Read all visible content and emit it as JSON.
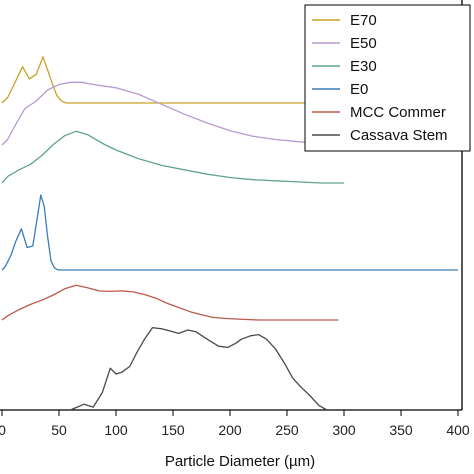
{
  "chart_data": {
    "type": "line",
    "xlabel": "Particle Diameter (µm)",
    "ylabel": "",
    "xlim": [
      0,
      400
    ],
    "xticks": [
      0,
      50,
      100,
      150,
      200,
      250,
      300,
      350,
      400
    ],
    "grid": false,
    "legend_position": "top-right",
    "series": [
      {
        "name": "E70",
        "color": "#c9a227",
        "x": [
          0,
          5,
          12,
          18,
          24,
          30,
          36,
          40,
          44,
          48,
          52,
          56,
          70,
          100,
          200,
          300
        ],
        "y": [
          0.0,
          0.05,
          0.2,
          0.33,
          0.22,
          0.26,
          0.42,
          0.3,
          0.18,
          0.07,
          0.02,
          0.0,
          0.0,
          0.0,
          0.0,
          0.0
        ]
      },
      {
        "name": "E50",
        "color": "#b99ad0",
        "x": [
          0,
          5,
          10,
          20,
          30,
          40,
          50,
          60,
          70,
          80,
          100,
          120,
          140,
          160,
          180,
          200,
          220,
          240,
          260,
          280,
          300
        ],
        "y": [
          0.0,
          0.05,
          0.15,
          0.33,
          0.4,
          0.5,
          0.55,
          0.57,
          0.57,
          0.55,
          0.52,
          0.46,
          0.37,
          0.28,
          0.2,
          0.13,
          0.08,
          0.05,
          0.03,
          0.01,
          0.0
        ]
      },
      {
        "name": "E30",
        "color": "#5fa58a",
        "x": [
          0,
          5,
          15,
          25,
          35,
          45,
          55,
          65,
          75,
          90,
          100,
          120,
          140,
          160,
          180,
          200,
          220,
          240,
          260,
          280,
          300
        ],
        "y": [
          0.0,
          0.06,
          0.12,
          0.17,
          0.25,
          0.35,
          0.43,
          0.47,
          0.44,
          0.35,
          0.3,
          0.22,
          0.16,
          0.12,
          0.08,
          0.05,
          0.03,
          0.02,
          0.01,
          0.0,
          0.0
        ]
      },
      {
        "name": "E0",
        "color": "#3a7dbb",
        "x": [
          0,
          3,
          8,
          12,
          17,
          22,
          27,
          31,
          34,
          37,
          40,
          43,
          46,
          49,
          53,
          60,
          100,
          200,
          300,
          400
        ],
        "y": [
          0.0,
          0.05,
          0.2,
          0.38,
          0.55,
          0.3,
          0.32,
          0.7,
          1.0,
          0.85,
          0.45,
          0.12,
          0.03,
          0.0,
          0.0,
          0.0,
          0.0,
          0.0,
          0.0,
          0.0
        ]
      },
      {
        "name": "MCC Commer",
        "color": "#b95a4a",
        "x": [
          0,
          5,
          15,
          25,
          35,
          45,
          55,
          65,
          75,
          85,
          95,
          105,
          115,
          125,
          135,
          145,
          155,
          165,
          175,
          185,
          195,
          205,
          215,
          225,
          235,
          245,
          255,
          265,
          275,
          285,
          295
        ],
        "y": [
          0.0,
          0.08,
          0.2,
          0.3,
          0.38,
          0.48,
          0.6,
          0.67,
          0.62,
          0.56,
          0.55,
          0.56,
          0.54,
          0.49,
          0.42,
          0.32,
          0.24,
          0.16,
          0.1,
          0.05,
          0.03,
          0.02,
          0.01,
          0.0,
          0.0,
          0.0,
          0.0,
          0.0,
          0.0,
          0.0,
          0.0
        ]
      },
      {
        "name": "Cassava Stem",
        "color": "#4a4a4a",
        "x": [
          60,
          66,
          72,
          80,
          88,
          95,
          100,
          105,
          112,
          118,
          125,
          132,
          140,
          148,
          155,
          163,
          170,
          180,
          190,
          198,
          205,
          210,
          218,
          225,
          232,
          240,
          248,
          255,
          262,
          270,
          278,
          285
        ],
        "y": [
          0.0,
          0.05,
          0.1,
          0.05,
          0.3,
          0.72,
          0.62,
          0.65,
          0.75,
          0.98,
          1.22,
          1.42,
          1.4,
          1.36,
          1.32,
          1.38,
          1.35,
          1.22,
          1.1,
          1.08,
          1.15,
          1.22,
          1.28,
          1.3,
          1.22,
          1.05,
          0.8,
          0.55,
          0.4,
          0.25,
          0.08,
          0.0
        ]
      }
    ]
  }
}
